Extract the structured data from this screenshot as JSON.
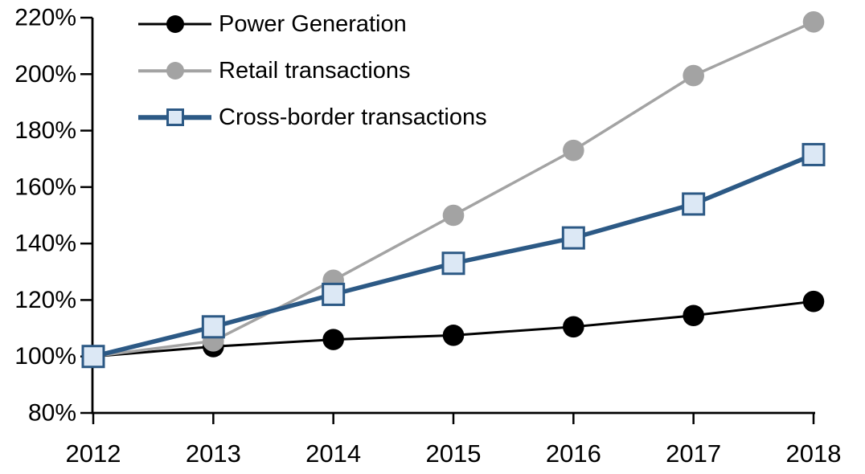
{
  "chart_data": {
    "type": "line",
    "title": "",
    "categories": [
      "2012",
      "2013",
      "2014",
      "2015",
      "2016",
      "2017",
      "2018"
    ],
    "series": [
      {
        "name": "Power Generation",
        "values": [
          100,
          103.5,
          106,
          107.5,
          110.5,
          114.5,
          119.5
        ],
        "color": "#000000",
        "marker": "circle",
        "marker_fill": "#000000",
        "line_width": 3
      },
      {
        "name": "Retail transactions",
        "values": [
          100,
          105.5,
          127,
          150,
          173,
          199.5,
          218.5
        ],
        "color": "#A3A3A3",
        "marker": "circle",
        "marker_fill": "#A3A3A3",
        "line_width": 3.5
      },
      {
        "name": "Cross-border transactions",
        "values": [
          100,
          110.5,
          122,
          133,
          142,
          154,
          171.5
        ],
        "color": "#2C5985",
        "marker": "square",
        "marker_fill": "#DCE8F5",
        "line_width": 5.5
      }
    ],
    "ylim": [
      80,
      220
    ],
    "y_tick_step": 20,
    "y_tick_labels": [
      "80%",
      "100%",
      "120%",
      "140%",
      "160%",
      "180%",
      "200%",
      "220%"
    ],
    "xlabel": "",
    "ylabel": "",
    "grid": false,
    "legend_position": "top-left-inside"
  }
}
